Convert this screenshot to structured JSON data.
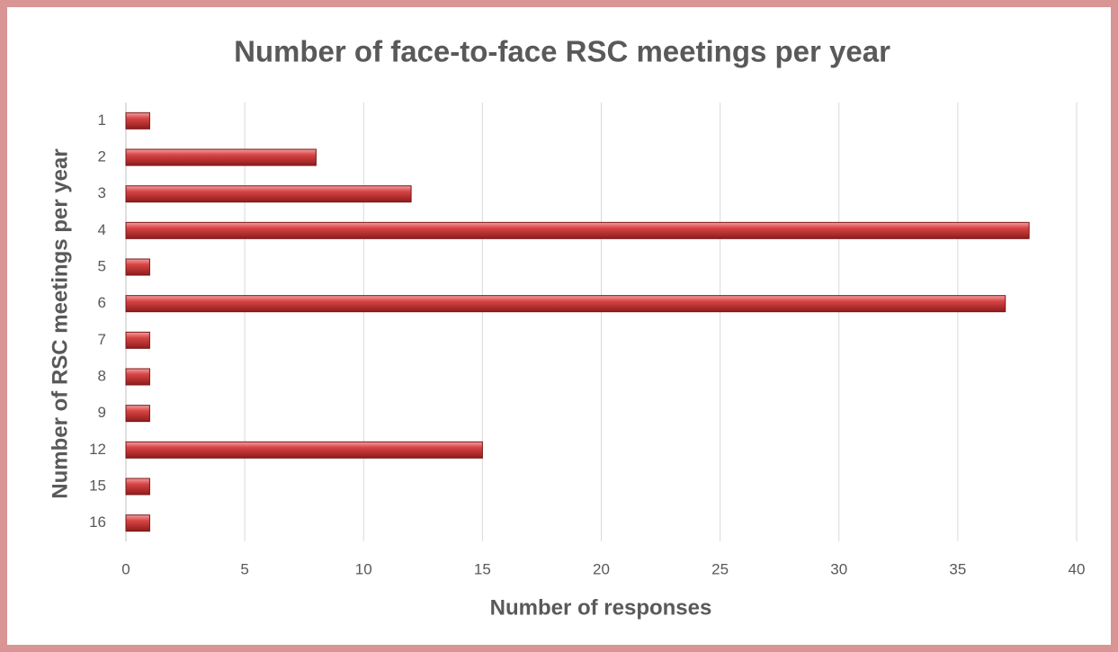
{
  "chart_data": {
    "type": "bar",
    "orientation": "horizontal",
    "title": "Number of face-to-face RSC meetings per year",
    "x_label": "Number of responses",
    "y_label": "Number of RSC meetings per year",
    "categories": [
      "1",
      "2",
      "3",
      "4",
      "5",
      "6",
      "7",
      "8",
      "9",
      "12",
      "15",
      "16"
    ],
    "values": [
      1,
      8,
      12,
      38,
      1,
      37,
      1,
      1,
      1,
      15,
      1,
      1
    ],
    "color": "#c0392b",
    "xlim": [
      0,
      40
    ],
    "xticks": [
      0,
      5,
      10,
      15,
      20,
      25,
      30,
      35,
      40
    ],
    "grid": true
  }
}
